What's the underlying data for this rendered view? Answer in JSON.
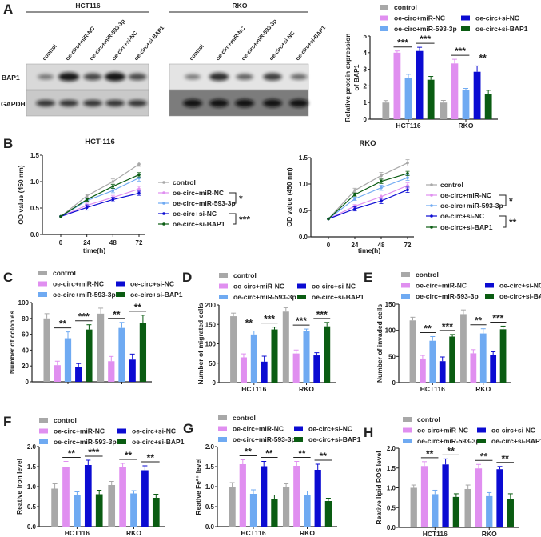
{
  "colors": {
    "control": "#a8a8a8",
    "miR-NC": "#e08ff0",
    "miR-593-3p": "#6faaf2",
    "si-NC": "#0b0bd2",
    "si-BAP1": "#0a5c12",
    "axis": "#222222"
  },
  "legend": [
    "control",
    "oe-circ+miR-NC",
    "oe-circ+miR-593-3p",
    "oe-circ+si-NC",
    "oe-circ+si-BAP1"
  ],
  "series_keys": [
    "control",
    "miR-NC",
    "miR-593-3p",
    "si-NC",
    "si-BAP1"
  ],
  "blot": {
    "panel_label": "A",
    "cell_lines": [
      "HCT116",
      "RKO"
    ],
    "lanes": [
      "control",
      "oe-circ+miR-NC",
      "oe-circ+miR-593-3p",
      "oe-circ+si-NC",
      "oe-circ+si-BAP1"
    ],
    "rows": [
      "BAP1",
      "GAPDH"
    ]
  },
  "chart_data": [
    {
      "id": "A",
      "panel_label": "",
      "type": "bar",
      "categories": [
        "HCT116",
        "RKO"
      ],
      "ylabel": "Relative protein expression of BAP1",
      "ylim": [
        0,
        5
      ],
      "yticks": [
        0,
        1,
        2,
        3,
        4,
        5
      ],
      "series": [
        {
          "name": "control",
          "values": [
            1.0,
            1.0
          ],
          "errors": [
            0.12,
            0.13
          ]
        },
        {
          "name": "oe-circ+miR-NC",
          "values": [
            4.0,
            3.35
          ],
          "errors": [
            0.1,
            0.25
          ]
        },
        {
          "name": "oe-circ+miR-593-3p",
          "values": [
            2.5,
            1.75
          ],
          "errors": [
            0.2,
            0.1
          ]
        },
        {
          "name": "oe-circ+si-NC",
          "values": [
            4.1,
            2.85
          ],
          "errors": [
            0.22,
            0.35
          ]
        },
        {
          "name": "oe-circ+si-BAP1",
          "values": [
            2.37,
            1.52
          ],
          "errors": [
            0.2,
            0.22
          ]
        }
      ],
      "significance": [
        [
          "***",
          "***"
        ],
        [
          "***",
          "**"
        ]
      ],
      "legend_placement": "top"
    },
    {
      "id": "B1",
      "panel_label": "B",
      "type": "line",
      "title": "HCT-116",
      "x": [
        0,
        24,
        48,
        72
      ],
      "xlabel": "time(h)",
      "ylabel": "OD value (450 nm)",
      "ylim": [
        0,
        1.5
      ],
      "yticks": [
        0.0,
        0.5,
        1.0,
        1.5
      ],
      "series": [
        {
          "name": "control",
          "values": [
            0.34,
            0.73,
            1.0,
            1.33
          ],
          "errors": [
            0,
            0.03,
            0.05,
            0.04
          ]
        },
        {
          "name": "oe-circ+miR-NC",
          "values": [
            0.34,
            0.55,
            0.7,
            0.86
          ],
          "errors": [
            0,
            0.04,
            0.04,
            0.05
          ]
        },
        {
          "name": "oe-circ+miR-593-3p",
          "values": [
            0.34,
            0.64,
            0.83,
            1.07
          ],
          "errors": [
            0,
            0.03,
            0.04,
            0.06
          ]
        },
        {
          "name": "oe-circ+si-NC",
          "values": [
            0.34,
            0.51,
            0.66,
            0.78
          ],
          "errors": [
            0,
            0.05,
            0.04,
            0.04
          ]
        },
        {
          "name": "oe-circ+si-BAP1",
          "values": [
            0.34,
            0.66,
            0.91,
            1.13
          ],
          "errors": [
            0,
            0.03,
            0.04,
            0.04
          ]
        }
      ],
      "significance": [
        "*",
        "***"
      ],
      "legend_placement": "right"
    },
    {
      "id": "B2",
      "panel_label": "",
      "type": "line",
      "title": "RKO",
      "x": [
        0,
        24,
        48,
        72
      ],
      "xlabel": "time(h)",
      "ylabel": "OD value (450 nm)",
      "ylim": [
        0,
        1.5
      ],
      "yticks": [
        0.0,
        0.5,
        1.0,
        1.5
      ],
      "series": [
        {
          "name": "control",
          "values": [
            0.34,
            0.88,
            1.16,
            1.4
          ],
          "errors": [
            0,
            0.04,
            0.06,
            0.06
          ]
        },
        {
          "name": "oe-circ+miR-NC",
          "values": [
            0.34,
            0.58,
            0.76,
            0.97
          ],
          "errors": [
            0,
            0.03,
            0.05,
            0.05
          ]
        },
        {
          "name": "oe-circ+miR-593-3p",
          "values": [
            0.34,
            0.72,
            0.93,
            1.12
          ],
          "errors": [
            0,
            0.03,
            0.05,
            0.05
          ]
        },
        {
          "name": "oe-circ+si-NC",
          "values": [
            0.34,
            0.53,
            0.68,
            0.89
          ],
          "errors": [
            0,
            0.04,
            0.05,
            0.05
          ]
        },
        {
          "name": "oe-circ+si-BAP1",
          "values": [
            0.34,
            0.8,
            1.05,
            1.2
          ],
          "errors": [
            0,
            0.03,
            0.04,
            0.04
          ]
        }
      ],
      "significance": [
        "*",
        "**"
      ],
      "legend_placement": "right"
    },
    {
      "id": "C",
      "panel_label": "C",
      "type": "bar",
      "categories": [
        "HCT116",
        "RKO"
      ],
      "ylabel": "Number of colonies",
      "ylim": [
        0,
        100
      ],
      "yticks": [
        0,
        20,
        40,
        60,
        80,
        100
      ],
      "show_category_labels": false,
      "series": [
        {
          "name": "control",
          "values": [
            80,
            86
          ],
          "errors": [
            6,
            7
          ]
        },
        {
          "name": "oe-circ+miR-NC",
          "values": [
            21,
            26
          ],
          "errors": [
            5,
            6
          ]
        },
        {
          "name": "oe-circ+miR-593-3p",
          "values": [
            55,
            68
          ],
          "errors": [
            8,
            7
          ]
        },
        {
          "name": "oe-circ+si-NC",
          "values": [
            19,
            28
          ],
          "errors": [
            4,
            7
          ]
        },
        {
          "name": "oe-circ+si-BAP1",
          "values": [
            66,
            74
          ],
          "errors": [
            6,
            10
          ]
        }
      ],
      "significance": [
        [
          "**",
          "***"
        ],
        [
          "**",
          "**"
        ]
      ],
      "legend_placement": "top"
    },
    {
      "id": "D",
      "panel_label": "D",
      "type": "bar",
      "categories": [
        "HCT116",
        "RKO"
      ],
      "ylabel": "Number of migrated cells",
      "ylim": [
        0,
        200
      ],
      "yticks": [
        0,
        50,
        100,
        150,
        200
      ],
      "series": [
        {
          "name": "control",
          "values": [
            171,
            183
          ],
          "errors": [
            8,
            10
          ]
        },
        {
          "name": "oe-circ+miR-NC",
          "values": [
            65,
            75
          ],
          "errors": [
            9,
            9
          ]
        },
        {
          "name": "oe-circ+miR-593-3p",
          "values": [
            124,
            132
          ],
          "errors": [
            9,
            6
          ]
        },
        {
          "name": "oe-circ+si-NC",
          "values": [
            54,
            70
          ],
          "errors": [
            14,
            7
          ]
        },
        {
          "name": "oe-circ+si-BAP1",
          "values": [
            137,
            145
          ],
          "errors": [
            6,
            10
          ]
        }
      ],
      "significance": [
        [
          "**",
          "***"
        ],
        [
          "***",
          "***"
        ]
      ],
      "legend_placement": "top"
    },
    {
      "id": "E",
      "panel_label": "E",
      "type": "bar",
      "categories": [
        "HCT116",
        "RKO"
      ],
      "ylabel": "Number of invaded cells",
      "ylim": [
        0,
        150
      ],
      "yticks": [
        0,
        50,
        100,
        150
      ],
      "series": [
        {
          "name": "control",
          "values": [
            119,
            131
          ],
          "errors": [
            6,
            8
          ]
        },
        {
          "name": "oe-circ+miR-NC",
          "values": [
            46,
            56
          ],
          "errors": [
            6,
            7
          ]
        },
        {
          "name": "oe-circ+miR-593-3p",
          "values": [
            80,
            94
          ],
          "errors": [
            8,
            9
          ]
        },
        {
          "name": "oe-circ+si-NC",
          "values": [
            41,
            53
          ],
          "errors": [
            8,
            6
          ]
        },
        {
          "name": "oe-circ+si-BAP1",
          "values": [
            88,
            102
          ],
          "errors": [
            4,
            6
          ]
        }
      ],
      "significance": [
        [
          "**",
          "***"
        ],
        [
          "**",
          "***"
        ]
      ],
      "legend_placement": "top"
    },
    {
      "id": "F",
      "panel_label": "F",
      "type": "bar",
      "categories": [
        "HCT116",
        "RKO"
      ],
      "ylabel": "Reative iron level",
      "ylim": [
        0,
        2.0
      ],
      "yticks": [
        0.0,
        0.5,
        1.0,
        1.5,
        2.0
      ],
      "series": [
        {
          "name": "control",
          "values": [
            0.95,
            1.04
          ],
          "errors": [
            0.12,
            0.09
          ]
        },
        {
          "name": "oe-circ+miR-NC",
          "values": [
            1.5,
            1.49
          ],
          "errors": [
            0.13,
            0.09
          ]
        },
        {
          "name": "oe-circ+miR-593-3p",
          "values": [
            0.8,
            0.83
          ],
          "errors": [
            0.07,
            0.07
          ]
        },
        {
          "name": "oe-circ+si-NC",
          "values": [
            1.54,
            1.41
          ],
          "errors": [
            0.12,
            0.11
          ]
        },
        {
          "name": "oe-circ+si-BAP1",
          "values": [
            0.81,
            0.72
          ],
          "errors": [
            0.1,
            0.09
          ]
        }
      ],
      "significance": [
        [
          "**",
          "***"
        ],
        [
          "**",
          "**"
        ]
      ],
      "legend_placement": "top"
    },
    {
      "id": "G",
      "panel_label": "G",
      "type": "bar",
      "categories": [
        "HCT116",
        "RKO"
      ],
      "ylabel": "Reative Fe²⁺ level",
      "ylim": [
        0,
        2.0
      ],
      "yticks": [
        0.0,
        0.5,
        1.0,
        1.5,
        2.0
      ],
      "series": [
        {
          "name": "control",
          "values": [
            1.0,
            1.0
          ],
          "errors": [
            0.1,
            0.07
          ]
        },
        {
          "name": "oe-circ+miR-NC",
          "values": [
            1.56,
            1.52
          ],
          "errors": [
            0.11,
            0.11
          ]
        },
        {
          "name": "oe-circ+miR-593-3p",
          "values": [
            0.82,
            0.8
          ],
          "errors": [
            0.1,
            0.09
          ]
        },
        {
          "name": "oe-circ+si-NC",
          "values": [
            1.51,
            1.42
          ],
          "errors": [
            0.12,
            0.14
          ]
        },
        {
          "name": "oe-circ+si-BAP1",
          "values": [
            0.69,
            0.64
          ],
          "errors": [
            0.1,
            0.07
          ]
        }
      ],
      "significance": [
        [
          "**",
          "**"
        ],
        [
          "**",
          "**"
        ]
      ],
      "legend_placement": "top"
    },
    {
      "id": "H",
      "panel_label": "H",
      "type": "bar",
      "categories": [
        "HCT116",
        "RKO"
      ],
      "ylabel": "Reative lipid ROS level",
      "ylim": [
        0,
        2.0
      ],
      "yticks": [
        0.0,
        0.5,
        1.0,
        1.5,
        2.0
      ],
      "series": [
        {
          "name": "control",
          "values": [
            1.0,
            0.97
          ],
          "errors": [
            0.07,
            0.1
          ]
        },
        {
          "name": "oe-circ+miR-NC",
          "values": [
            1.55,
            1.49
          ],
          "errors": [
            0.11,
            0.1
          ]
        },
        {
          "name": "oe-circ+miR-593-3p",
          "values": [
            0.84,
            0.79
          ],
          "errors": [
            0.1,
            0.09
          ]
        },
        {
          "name": "oe-circ+si-NC",
          "values": [
            1.59,
            1.47
          ],
          "errors": [
            0.14,
            0.07
          ]
        },
        {
          "name": "oe-circ+si-BAP1",
          "values": [
            0.77,
            0.71
          ],
          "errors": [
            0.08,
            0.14
          ]
        }
      ],
      "significance": [
        [
          "**",
          "**"
        ],
        [
          "**",
          "**"
        ]
      ],
      "legend_placement": "top"
    }
  ]
}
